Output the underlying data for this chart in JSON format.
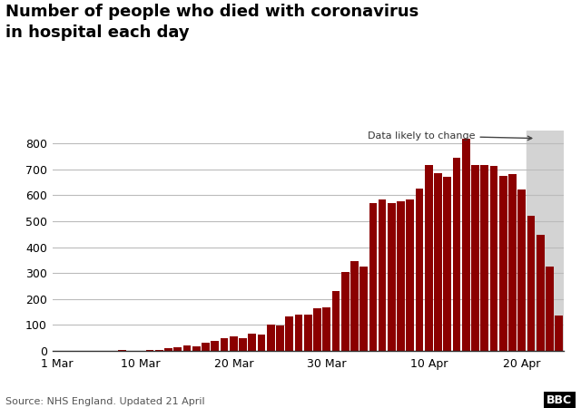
{
  "title": "Number of people who died with coronavirus\nin hospital each day",
  "source": "Source: NHS England. Updated 21 April",
  "bar_color": "#8B0000",
  "highlight_color": "#D3D3D3",
  "annotation": "Data likely to change",
  "ylim": [
    0,
    850
  ],
  "yticks": [
    0,
    100,
    200,
    300,
    400,
    500,
    600,
    700,
    800
  ],
  "xtick_labels": [
    "1 Mar",
    "10 Mar",
    "20 Mar",
    "30 Mar",
    "10 Apr",
    "20 Apr"
  ],
  "xtick_positions": [
    0,
    9,
    19,
    29,
    40,
    50
  ],
  "values": [
    0,
    1,
    0,
    0,
    0,
    0,
    1,
    2,
    1,
    1,
    5,
    4,
    10,
    14,
    20,
    16,
    33,
    40,
    50,
    56,
    48,
    65,
    63,
    100,
    97,
    134,
    139,
    141,
    164,
    168,
    232,
    305,
    347,
    327,
    569,
    583,
    569,
    577,
    583,
    627,
    718,
    684,
    673,
    744,
    818,
    716,
    717,
    712,
    674,
    681,
    622,
    520,
    449,
    324,
    138
  ],
  "shade_start_index": 51,
  "background_color": "#ffffff",
  "grid_color": "#bbbbbb"
}
